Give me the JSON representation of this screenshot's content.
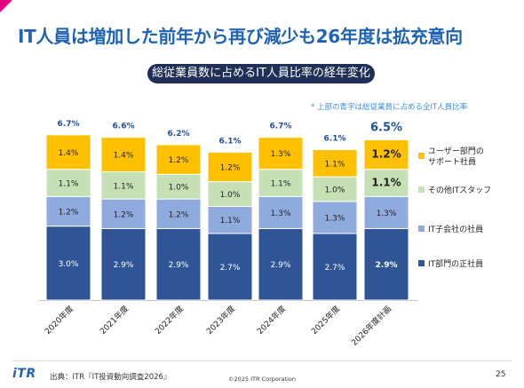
{
  "header": {
    "title": "IT人員は増加した前年から再び減少も26年度は拡充意向",
    "subtitle": "総従業員数に占めるIT人員比率の経年変化",
    "note": "* 上部の青字は総従業員に占める全IT人員比率"
  },
  "footer": {
    "logo": "iTR",
    "source": "出典：ITR『IT投資動向調査2026』",
    "copyright": "©2025 ITR Corporation",
    "page": "25"
  },
  "colors": {
    "title": "#1e63b4",
    "pill": "#1f2f55",
    "it_dept": "#2f5597",
    "subsidiary": "#8faadc",
    "other_it": "#c5e0b4",
    "user_dept": "#ffc000",
    "total_label": "#1f4e9e"
  },
  "chart_data": {
    "type": "bar",
    "stacked": true,
    "categories": [
      "2020年度",
      "2021年度",
      "2022年度",
      "2023年度",
      "2024年度",
      "2025年度",
      "2026年度計画"
    ],
    "series": [
      {
        "name": "IT部門の正社員",
        "color": "#2f5597",
        "values": [
          3.0,
          2.9,
          2.9,
          2.7,
          2.9,
          2.7,
          2.9
        ],
        "labels": [
          "3.0%",
          "2.9%",
          "2.9%",
          "2.7%",
          "2.9%",
          "2.7%",
          "2.9%"
        ]
      },
      {
        "name": "IT子会社の社員",
        "color": "#8faadc",
        "values": [
          1.2,
          1.2,
          1.2,
          1.1,
          1.3,
          1.3,
          1.3
        ],
        "labels": [
          "1.2%",
          "1.2%",
          "1.2%",
          "1.1%",
          "1.3%",
          "1.3%",
          "1.3%"
        ]
      },
      {
        "name": "その他ITスタッフ",
        "color": "#c5e0b4",
        "values": [
          1.1,
          1.1,
          1.0,
          1.0,
          1.1,
          1.0,
          1.1
        ],
        "labels": [
          "1.1%",
          "1.1%",
          "1.0%",
          "1.0%",
          "1.1%",
          "1.0%",
          "1.1%"
        ]
      },
      {
        "name": "ユーザー部門のサポート社員",
        "color": "#ffc000",
        "values": [
          1.4,
          1.4,
          1.2,
          1.2,
          1.3,
          1.1,
          1.2
        ],
        "labels": [
          "1.4%",
          "1.4%",
          "1.2%",
          "1.2%",
          "1.3%",
          "1.1%",
          "1.2%"
        ]
      }
    ],
    "totals": [
      6.7,
      6.6,
      6.2,
      6.1,
      6.7,
      6.1,
      6.5
    ],
    "total_labels": [
      "6.7%",
      "6.6%",
      "6.2%",
      "6.1%",
      "6.7%",
      "6.1%",
      "6.5%"
    ],
    "highlight_category": "2026年度計画",
    "legend": {
      "position": "right",
      "entries": [
        "ユーザー部門の\nサポート社員",
        "その他ITスタッフ",
        "IT子会社の社員",
        "IT部門の正社員"
      ]
    },
    "ylim": [
      0,
      7.2
    ],
    "grid": false
  }
}
